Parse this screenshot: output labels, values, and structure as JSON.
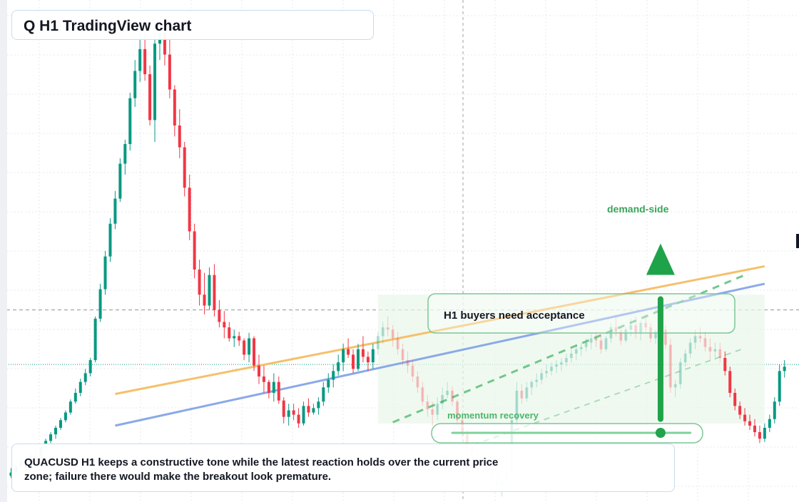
{
  "title": "Q H1 TradingView chart",
  "note": "QUACUSD H1 keeps a constructive tone while the latest reaction holds over the current price zone; failure there would make the breakout look premature.",
  "annotations": {
    "buyers": "H1 buyers need acceptance",
    "demand": "demand-side",
    "momentum": "momentum recovery"
  },
  "colors": {
    "up": "#089981",
    "down": "#f23645",
    "orange_line": "#f5c06b",
    "blue_line": "#8aa9e8",
    "green_accent": "#1fa34a",
    "zone_fill": "#e9f6e9",
    "grid": "#e6e9ee"
  },
  "chart_data": {
    "type": "candlestick",
    "symbol": "QUACUSD",
    "timeframe": "H1",
    "candles": [
      [
        24,
        31,
        22,
        27
      ],
      [
        27,
        34,
        25,
        33
      ],
      [
        33,
        40,
        30,
        38
      ],
      [
        38,
        39,
        28,
        30
      ],
      [
        30,
        44,
        29,
        42
      ],
      [
        42,
        48,
        36,
        38
      ],
      [
        38,
        52,
        37,
        50
      ],
      [
        50,
        58,
        47,
        56
      ],
      [
        56,
        64,
        54,
        62
      ],
      [
        62,
        70,
        58,
        68
      ],
      [
        68,
        77,
        66,
        75
      ],
      [
        75,
        84,
        73,
        82
      ],
      [
        82,
        94,
        80,
        92
      ],
      [
        92,
        104,
        90,
        100
      ],
      [
        100,
        113,
        97,
        110
      ],
      [
        110,
        122,
        107,
        118
      ],
      [
        118,
        132,
        115,
        130
      ],
      [
        130,
        170,
        128,
        168
      ],
      [
        168,
        200,
        165,
        195
      ],
      [
        195,
        230,
        190,
        225
      ],
      [
        225,
        260,
        220,
        255
      ],
      [
        255,
        285,
        250,
        278
      ],
      [
        278,
        315,
        275,
        310
      ],
      [
        310,
        332,
        300,
        328
      ],
      [
        328,
        375,
        322,
        370
      ],
      [
        370,
        405,
        362,
        395
      ],
      [
        395,
        430,
        385,
        415
      ],
      [
        415,
        436,
        386,
        392
      ],
      [
        392,
        400,
        345,
        350
      ],
      [
        350,
        430,
        330,
        420
      ],
      [
        420,
        436,
        405,
        430
      ],
      [
        430,
        438,
        400,
        410
      ],
      [
        410,
        425,
        370,
        378
      ],
      [
        378,
        382,
        335,
        345
      ],
      [
        345,
        360,
        315,
        325
      ],
      [
        325,
        330,
        280,
        288
      ],
      [
        288,
        300,
        240,
        248
      ],
      [
        248,
        255,
        205,
        213
      ],
      [
        213,
        222,
        180,
        190
      ],
      [
        190,
        210,
        172,
        180
      ],
      [
        180,
        215,
        176,
        208
      ],
      [
        208,
        218,
        170,
        176
      ],
      [
        176,
        185,
        160,
        165
      ],
      [
        165,
        175,
        150,
        160
      ],
      [
        160,
        165,
        147,
        150
      ],
      [
        150,
        158,
        142,
        152
      ],
      [
        152,
        156,
        143,
        148
      ],
      [
        148,
        150,
        130,
        135
      ],
      [
        135,
        155,
        128,
        150
      ],
      [
        150,
        152,
        120,
        125
      ],
      [
        125,
        135,
        108,
        115
      ],
      [
        115,
        125,
        100,
        110
      ],
      [
        110,
        112,
        95,
        100
      ],
      [
        100,
        118,
        92,
        110
      ],
      [
        110,
        115,
        90,
        93
      ],
      [
        93,
        96,
        72,
        78
      ],
      [
        78,
        90,
        70,
        84
      ],
      [
        84,
        90,
        75,
        80
      ],
      [
        80,
        86,
        68,
        72
      ],
      [
        72,
        92,
        70,
        88
      ],
      [
        88,
        95,
        78,
        82
      ],
      [
        82,
        90,
        80,
        86
      ],
      [
        86,
        96,
        80,
        92
      ],
      [
        92,
        110,
        88,
        105
      ],
      [
        105,
        118,
        100,
        112
      ],
      [
        112,
        126,
        105,
        120
      ],
      [
        120,
        135,
        116,
        128
      ],
      [
        128,
        145,
        120,
        140
      ],
      [
        140,
        150,
        132,
        135
      ],
      [
        135,
        140,
        118,
        122
      ],
      [
        122,
        145,
        120,
        140
      ],
      [
        140,
        152,
        128,
        133
      ],
      [
        133,
        138,
        120,
        128
      ],
      [
        128,
        145,
        122,
        140
      ],
      [
        140,
        156,
        135,
        152
      ],
      [
        152,
        165,
        145,
        160
      ],
      [
        160,
        170,
        152,
        158
      ],
      [
        158,
        162,
        142,
        150
      ],
      [
        150,
        156,
        135,
        140
      ],
      [
        140,
        145,
        125,
        130
      ],
      [
        130,
        138,
        118,
        125
      ],
      [
        125,
        130,
        110,
        115
      ],
      [
        115,
        120,
        100,
        105
      ],
      [
        105,
        110,
        88,
        92
      ],
      [
        92,
        98,
        78,
        85
      ],
      [
        85,
        92,
        70,
        80
      ],
      [
        80,
        96,
        75,
        90
      ],
      [
        90,
        105,
        85,
        98
      ],
      [
        98,
        110,
        95,
        102
      ],
      [
        102,
        106,
        88,
        92
      ],
      [
        92,
        94,
        70,
        75
      ],
      [
        75,
        80,
        58,
        62
      ],
      [
        62,
        66,
        45,
        50
      ],
      [
        50,
        55,
        38,
        44
      ],
      [
        44,
        50,
        30,
        36
      ],
      [
        36,
        45,
        25,
        40
      ],
      [
        40,
        42,
        22,
        28
      ],
      [
        28,
        30,
        15,
        22
      ],
      [
        22,
        30,
        10,
        15
      ],
      [
        15,
        25,
        5,
        20
      ],
      [
        20,
        30,
        18,
        27
      ],
      [
        27,
        80,
        24,
        75
      ],
      [
        75,
        110,
        70,
        102
      ],
      [
        102,
        108,
        90,
        95
      ],
      [
        95,
        110,
        92,
        105
      ],
      [
        105,
        112,
        98,
        110
      ],
      [
        110,
        118,
        105,
        112
      ],
      [
        112,
        122,
        108,
        118
      ],
      [
        118,
        126,
        114,
        120
      ],
      [
        120,
        128,
        116,
        124
      ],
      [
        124,
        130,
        118,
        126
      ],
      [
        126,
        132,
        120,
        128
      ],
      [
        128,
        136,
        124,
        132
      ],
      [
        132,
        140,
        128,
        136
      ],
      [
        136,
        144,
        130,
        140
      ],
      [
        140,
        146,
        134,
        142
      ],
      [
        142,
        150,
        138,
        146
      ],
      [
        146,
        154,
        140,
        150
      ],
      [
        150,
        156,
        142,
        148
      ],
      [
        148,
        154,
        136,
        140
      ],
      [
        140,
        152,
        138,
        150
      ],
      [
        150,
        164,
        146,
        160
      ],
      [
        160,
        170,
        152,
        156
      ],
      [
        156,
        160,
        144,
        148
      ],
      [
        148,
        160,
        146,
        158
      ],
      [
        158,
        168,
        152,
        162
      ],
      [
        162,
        170,
        150,
        155
      ],
      [
        155,
        166,
        148,
        164
      ],
      [
        164,
        172,
        156,
        160
      ],
      [
        160,
        164,
        146,
        150
      ],
      [
        150,
        158,
        145,
        156
      ],
      [
        156,
        164,
        150,
        158
      ],
      [
        158,
        162,
        140,
        144
      ],
      [
        144,
        150,
        100,
        105
      ],
      [
        105,
        112,
        96,
        108
      ],
      [
        108,
        132,
        104,
        128
      ],
      [
        128,
        140,
        124,
        136
      ],
      [
        136,
        150,
        132,
        146
      ],
      [
        146,
        158,
        140,
        152
      ],
      [
        152,
        160,
        146,
        150
      ],
      [
        150,
        156,
        138,
        142
      ],
      [
        142,
        150,
        130,
        138
      ],
      [
        138,
        146,
        130,
        140
      ],
      [
        140,
        146,
        128,
        132
      ],
      [
        132,
        138,
        116,
        120
      ],
      [
        120,
        124,
        96,
        100
      ],
      [
        100,
        104,
        84,
        88
      ],
      [
        88,
        92,
        76,
        80
      ],
      [
        80,
        86,
        70,
        74
      ],
      [
        74,
        80,
        66,
        70
      ],
      [
        70,
        76,
        60,
        64
      ],
      [
        64,
        70,
        54,
        58
      ],
      [
        58,
        72,
        55,
        68
      ],
      [
        68,
        80,
        64,
        76
      ],
      [
        76,
        96,
        72,
        92
      ],
      [
        92,
        126,
        88,
        120
      ],
      [
        120,
        130,
        114,
        124
      ]
    ],
    "trendlines": [
      {
        "name": "orange",
        "from": [
          21,
          99
        ],
        "to": [
          152,
          216
        ]
      },
      {
        "name": "blue",
        "from": [
          21,
          70
        ],
        "to": [
          152,
          200
        ]
      },
      {
        "name": "green-dashed",
        "from": [
          77,
          73
        ],
        "to": [
          148,
          208
        ]
      },
      {
        "name": "green-dashed-light",
        "from": [
          77,
          26
        ],
        "to": [
          148,
          141
        ]
      }
    ],
    "zone": {
      "x_from": 74,
      "x_to": 152,
      "y_from": 72,
      "y_to": 190
    },
    "arrow": {
      "x": 131,
      "y_from": 76,
      "y_to": 212
    },
    "slider": {
      "x_from": 89,
      "x_to": 137,
      "y": 16,
      "marker_x": 131
    },
    "dashed_level": 176,
    "dotted_level": 126,
    "ylim": [
      0,
      460
    ],
    "grid": true
  }
}
